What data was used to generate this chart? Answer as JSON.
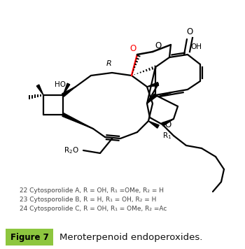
{
  "bg_color": "#ffffff",
  "figure_label": "Figure 7",
  "figure_label_bg": "#8dc63f",
  "figure_label_color": "#000000",
  "caption": "Meroterpenoid endoperoxides.",
  "annotation_lines": [
    "22 Cytosporolide A, R = OH, R₁ =OMe, R₂ = H",
    "23 Cytosporolide B, R = H, R₁ = OH, R₂ = H",
    "24 Cytosporolide C, R = OH, R₁ = OMe, R₂ =Ac"
  ]
}
